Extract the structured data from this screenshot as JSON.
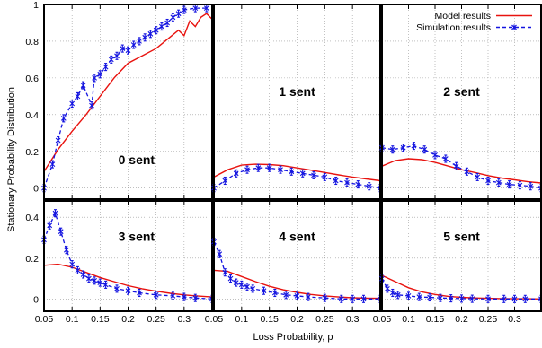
{
  "chart_data": {
    "type": "line",
    "xlabel": "Loss Probability, p",
    "ylabel": "Stationary Probability Distribution",
    "x_ticks": [
      "0.05",
      "0.1",
      "0.15",
      "0.2",
      "0.25",
      "0.3"
    ],
    "xlim": [
      0.05,
      0.35
    ],
    "legend": {
      "placement": "top-right",
      "entries": [
        "Model results",
        "Simulation results"
      ]
    },
    "colors": {
      "model": "#e8130f",
      "simulation": "#1414e0",
      "frame": "#000000"
    },
    "panels": [
      {
        "label": "0 sent",
        "ylim": [
          -0.06,
          1.0
        ],
        "y_ticks": [
          "0",
          "0.2",
          "0.4",
          "0.6",
          "0.8",
          "1"
        ],
        "model": {
          "x": [
            0.05,
            0.075,
            0.1,
            0.125,
            0.15,
            0.175,
            0.2,
            0.225,
            0.25,
            0.27,
            0.29,
            0.3,
            0.31,
            0.32,
            0.33,
            0.34,
            0.35
          ],
          "y": [
            0.09,
            0.21,
            0.31,
            0.4,
            0.5,
            0.6,
            0.68,
            0.72,
            0.76,
            0.81,
            0.86,
            0.83,
            0.91,
            0.88,
            0.93,
            0.95,
            0.92
          ]
        },
        "simulation": {
          "x": [
            0.05,
            0.065,
            0.075,
            0.085,
            0.1,
            0.11,
            0.12,
            0.135,
            0.14,
            0.15,
            0.16,
            0.17,
            0.18,
            0.19,
            0.2,
            0.21,
            0.22,
            0.23,
            0.24,
            0.25,
            0.26,
            0.27,
            0.28,
            0.29,
            0.3,
            0.32,
            0.34
          ],
          "y": [
            0.0,
            0.13,
            0.26,
            0.38,
            0.46,
            0.5,
            0.56,
            0.45,
            0.6,
            0.62,
            0.66,
            0.7,
            0.72,
            0.76,
            0.75,
            0.78,
            0.8,
            0.82,
            0.84,
            0.86,
            0.88,
            0.9,
            0.93,
            0.95,
            0.97,
            0.98,
            0.98
          ]
        }
      },
      {
        "label": "1 sent",
        "ylim": [
          -0.06,
          1.0
        ],
        "y_ticks": [],
        "model": {
          "x": [
            0.05,
            0.075,
            0.1,
            0.125,
            0.15,
            0.175,
            0.2,
            0.225,
            0.25,
            0.275,
            0.3,
            0.325,
            0.35
          ],
          "y": [
            0.06,
            0.1,
            0.125,
            0.13,
            0.128,
            0.122,
            0.11,
            0.098,
            0.085,
            0.072,
            0.06,
            0.05,
            0.04
          ]
        },
        "simulation": {
          "x": [
            0.05,
            0.07,
            0.09,
            0.11,
            0.13,
            0.15,
            0.17,
            0.19,
            0.21,
            0.23,
            0.25,
            0.27,
            0.29,
            0.31,
            0.33,
            0.35
          ],
          "y": [
            0.0,
            0.04,
            0.08,
            0.1,
            0.11,
            0.11,
            0.1,
            0.09,
            0.08,
            0.07,
            0.06,
            0.04,
            0.03,
            0.02,
            0.01,
            0.0
          ]
        }
      },
      {
        "label": "2 sent",
        "ylim": [
          -0.06,
          1.0
        ],
        "y_ticks": [],
        "model": {
          "x": [
            0.05,
            0.075,
            0.1,
            0.125,
            0.15,
            0.175,
            0.2,
            0.225,
            0.25,
            0.275,
            0.3,
            0.325,
            0.35
          ],
          "y": [
            0.12,
            0.15,
            0.16,
            0.155,
            0.14,
            0.12,
            0.1,
            0.085,
            0.068,
            0.055,
            0.045,
            0.035,
            0.028
          ]
        },
        "simulation": {
          "x": [
            0.05,
            0.07,
            0.09,
            0.11,
            0.13,
            0.15,
            0.17,
            0.19,
            0.21,
            0.23,
            0.25,
            0.27,
            0.29,
            0.31,
            0.33,
            0.35
          ],
          "y": [
            0.22,
            0.21,
            0.22,
            0.23,
            0.21,
            0.18,
            0.16,
            0.12,
            0.09,
            0.06,
            0.04,
            0.03,
            0.02,
            0.015,
            0.01,
            0.0
          ]
        }
      },
      {
        "label": "3 sent",
        "ylim": [
          -0.06,
          0.48
        ],
        "y_ticks": [
          "0",
          "0.2",
          "0.4"
        ],
        "model": {
          "x": [
            0.05,
            0.075,
            0.1,
            0.125,
            0.15,
            0.175,
            0.2,
            0.225,
            0.25,
            0.275,
            0.3,
            0.325,
            0.35
          ],
          "y": [
            0.165,
            0.17,
            0.155,
            0.13,
            0.105,
            0.085,
            0.065,
            0.05,
            0.038,
            0.028,
            0.02,
            0.014,
            0.01
          ]
        },
        "simulation": {
          "x": [
            0.05,
            0.06,
            0.07,
            0.08,
            0.09,
            0.1,
            0.11,
            0.12,
            0.13,
            0.14,
            0.15,
            0.16,
            0.18,
            0.2,
            0.22,
            0.25,
            0.28,
            0.3,
            0.32,
            0.35
          ],
          "y": [
            0.29,
            0.36,
            0.42,
            0.33,
            0.24,
            0.17,
            0.14,
            0.12,
            0.1,
            0.09,
            0.08,
            0.07,
            0.05,
            0.04,
            0.03,
            0.02,
            0.015,
            0.01,
            0.005,
            0.0
          ]
        }
      },
      {
        "label": "4 sent",
        "ylim": [
          -0.06,
          0.48
        ],
        "y_ticks": [],
        "model": {
          "x": [
            0.05,
            0.075,
            0.1,
            0.125,
            0.15,
            0.175,
            0.2,
            0.225,
            0.25,
            0.275,
            0.3,
            0.325,
            0.35
          ],
          "y": [
            0.14,
            0.135,
            0.11,
            0.085,
            0.062,
            0.045,
            0.032,
            0.022,
            0.015,
            0.01,
            0.006,
            0.004,
            0.003
          ]
        },
        "simulation": {
          "x": [
            0.05,
            0.06,
            0.07,
            0.08,
            0.09,
            0.1,
            0.11,
            0.12,
            0.14,
            0.16,
            0.18,
            0.2,
            0.22,
            0.25,
            0.28,
            0.3,
            0.32,
            0.35
          ],
          "y": [
            0.28,
            0.22,
            0.13,
            0.1,
            0.08,
            0.07,
            0.06,
            0.05,
            0.04,
            0.03,
            0.02,
            0.015,
            0.01,
            0.005,
            0.0,
            0.0,
            0.0,
            0.0
          ]
        }
      },
      {
        "label": "5 sent",
        "ylim": [
          -0.06,
          0.48
        ],
        "y_ticks": [],
        "model": {
          "x": [
            0.05,
            0.075,
            0.1,
            0.125,
            0.15,
            0.175,
            0.2,
            0.225,
            0.25,
            0.275,
            0.3,
            0.325,
            0.35
          ],
          "y": [
            0.115,
            0.085,
            0.055,
            0.035,
            0.022,
            0.013,
            0.008,
            0.005,
            0.003,
            0.002,
            0.001,
            0.001,
            0.0
          ]
        },
        "simulation": {
          "x": [
            0.05,
            0.06,
            0.07,
            0.08,
            0.1,
            0.12,
            0.14,
            0.16,
            0.18,
            0.2,
            0.22,
            0.25,
            0.28,
            0.3,
            0.32,
            0.35
          ],
          "y": [
            0.1,
            0.05,
            0.03,
            0.02,
            0.015,
            0.01,
            0.008,
            0.005,
            0.003,
            0.002,
            0.001,
            0.0,
            0.0,
            0.0,
            0.0,
            0.0
          ]
        }
      }
    ]
  }
}
